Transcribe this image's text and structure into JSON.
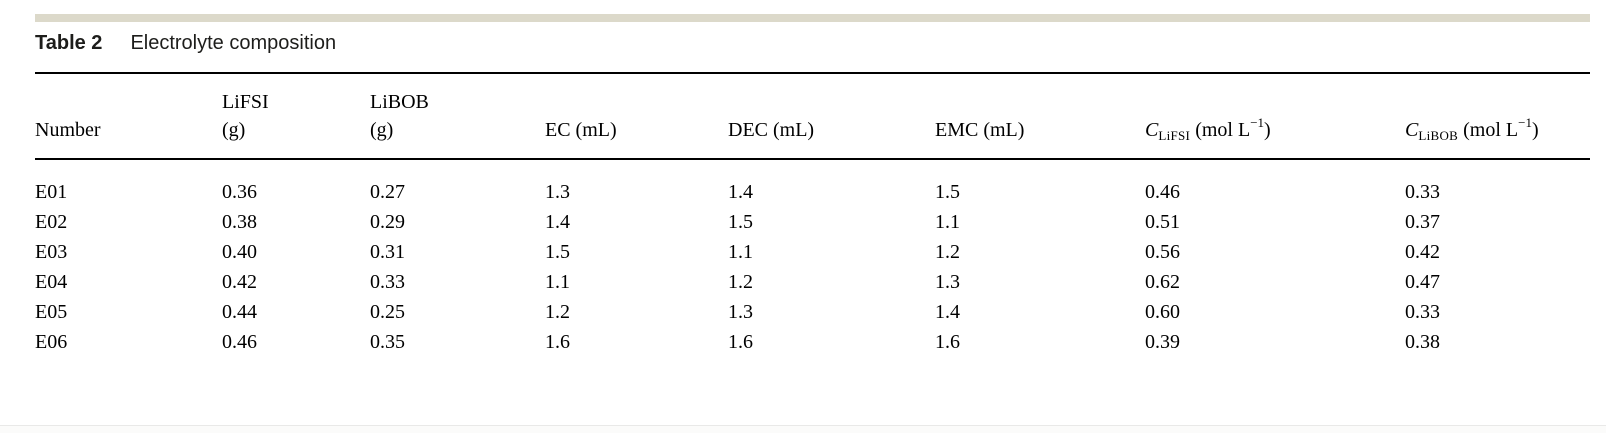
{
  "caption": {
    "label": "Table 2",
    "text": "Electrolyte composition"
  },
  "table": {
    "column_keys": [
      "number",
      "lifsi_g",
      "libob_g",
      "ec_ml",
      "dec_ml",
      "emc_ml",
      "c_lifsi",
      "c_libob"
    ],
    "header": {
      "number": "Number",
      "lifsi_g": {
        "line1": "LiFSI",
        "line2": "(g)"
      },
      "libob_g": {
        "line1": "LiBOB",
        "line2": "(g)"
      },
      "ec_ml": "EC (mL)",
      "dec_ml": "DEC (mL)",
      "emc_ml": "EMC (mL)",
      "c_lifsi": {
        "symbol": "C",
        "subscript": "LiFSI",
        "unit": " (mol L",
        "exponent": "−1",
        "close": ")"
      },
      "c_libob": {
        "symbol": "C",
        "subscript": "LiBOB",
        "unit": " (mol L",
        "exponent": "−1",
        "close": ")"
      }
    },
    "rows": [
      {
        "number": "E01",
        "lifsi_g": "0.36",
        "libob_g": "0.27",
        "ec_ml": "1.3",
        "dec_ml": "1.4",
        "emc_ml": "1.5",
        "c_lifsi": "0.46",
        "c_libob": "0.33"
      },
      {
        "number": "E02",
        "lifsi_g": "0.38",
        "libob_g": "0.29",
        "ec_ml": "1.4",
        "dec_ml": "1.5",
        "emc_ml": "1.1",
        "c_lifsi": "0.51",
        "c_libob": "0.37"
      },
      {
        "number": "E03",
        "lifsi_g": "0.40",
        "libob_g": "0.31",
        "ec_ml": "1.5",
        "dec_ml": "1.1",
        "emc_ml": "1.2",
        "c_lifsi": "0.56",
        "c_libob": "0.42"
      },
      {
        "number": "E04",
        "lifsi_g": "0.42",
        "libob_g": "0.33",
        "ec_ml": "1.1",
        "dec_ml": "1.2",
        "emc_ml": "1.3",
        "c_lifsi": "0.62",
        "c_libob": "0.47"
      },
      {
        "number": "E05",
        "lifsi_g": "0.44",
        "libob_g": "0.25",
        "ec_ml": "1.2",
        "dec_ml": "1.3",
        "emc_ml": "1.4",
        "c_lifsi": "0.60",
        "c_libob": "0.33"
      },
      {
        "number": "E06",
        "lifsi_g": "0.46",
        "libob_g": "0.35",
        "ec_ml": "1.6",
        "dec_ml": "1.6",
        "emc_ml": "1.6",
        "c_lifsi": "0.39",
        "c_libob": "0.38"
      }
    ]
  },
  "colors": {
    "divider_bar": "#dcd9ca",
    "rule": "#000000",
    "page_edge_line": "#e9e9e8",
    "page_edge_strip": "#fbfbfa"
  }
}
